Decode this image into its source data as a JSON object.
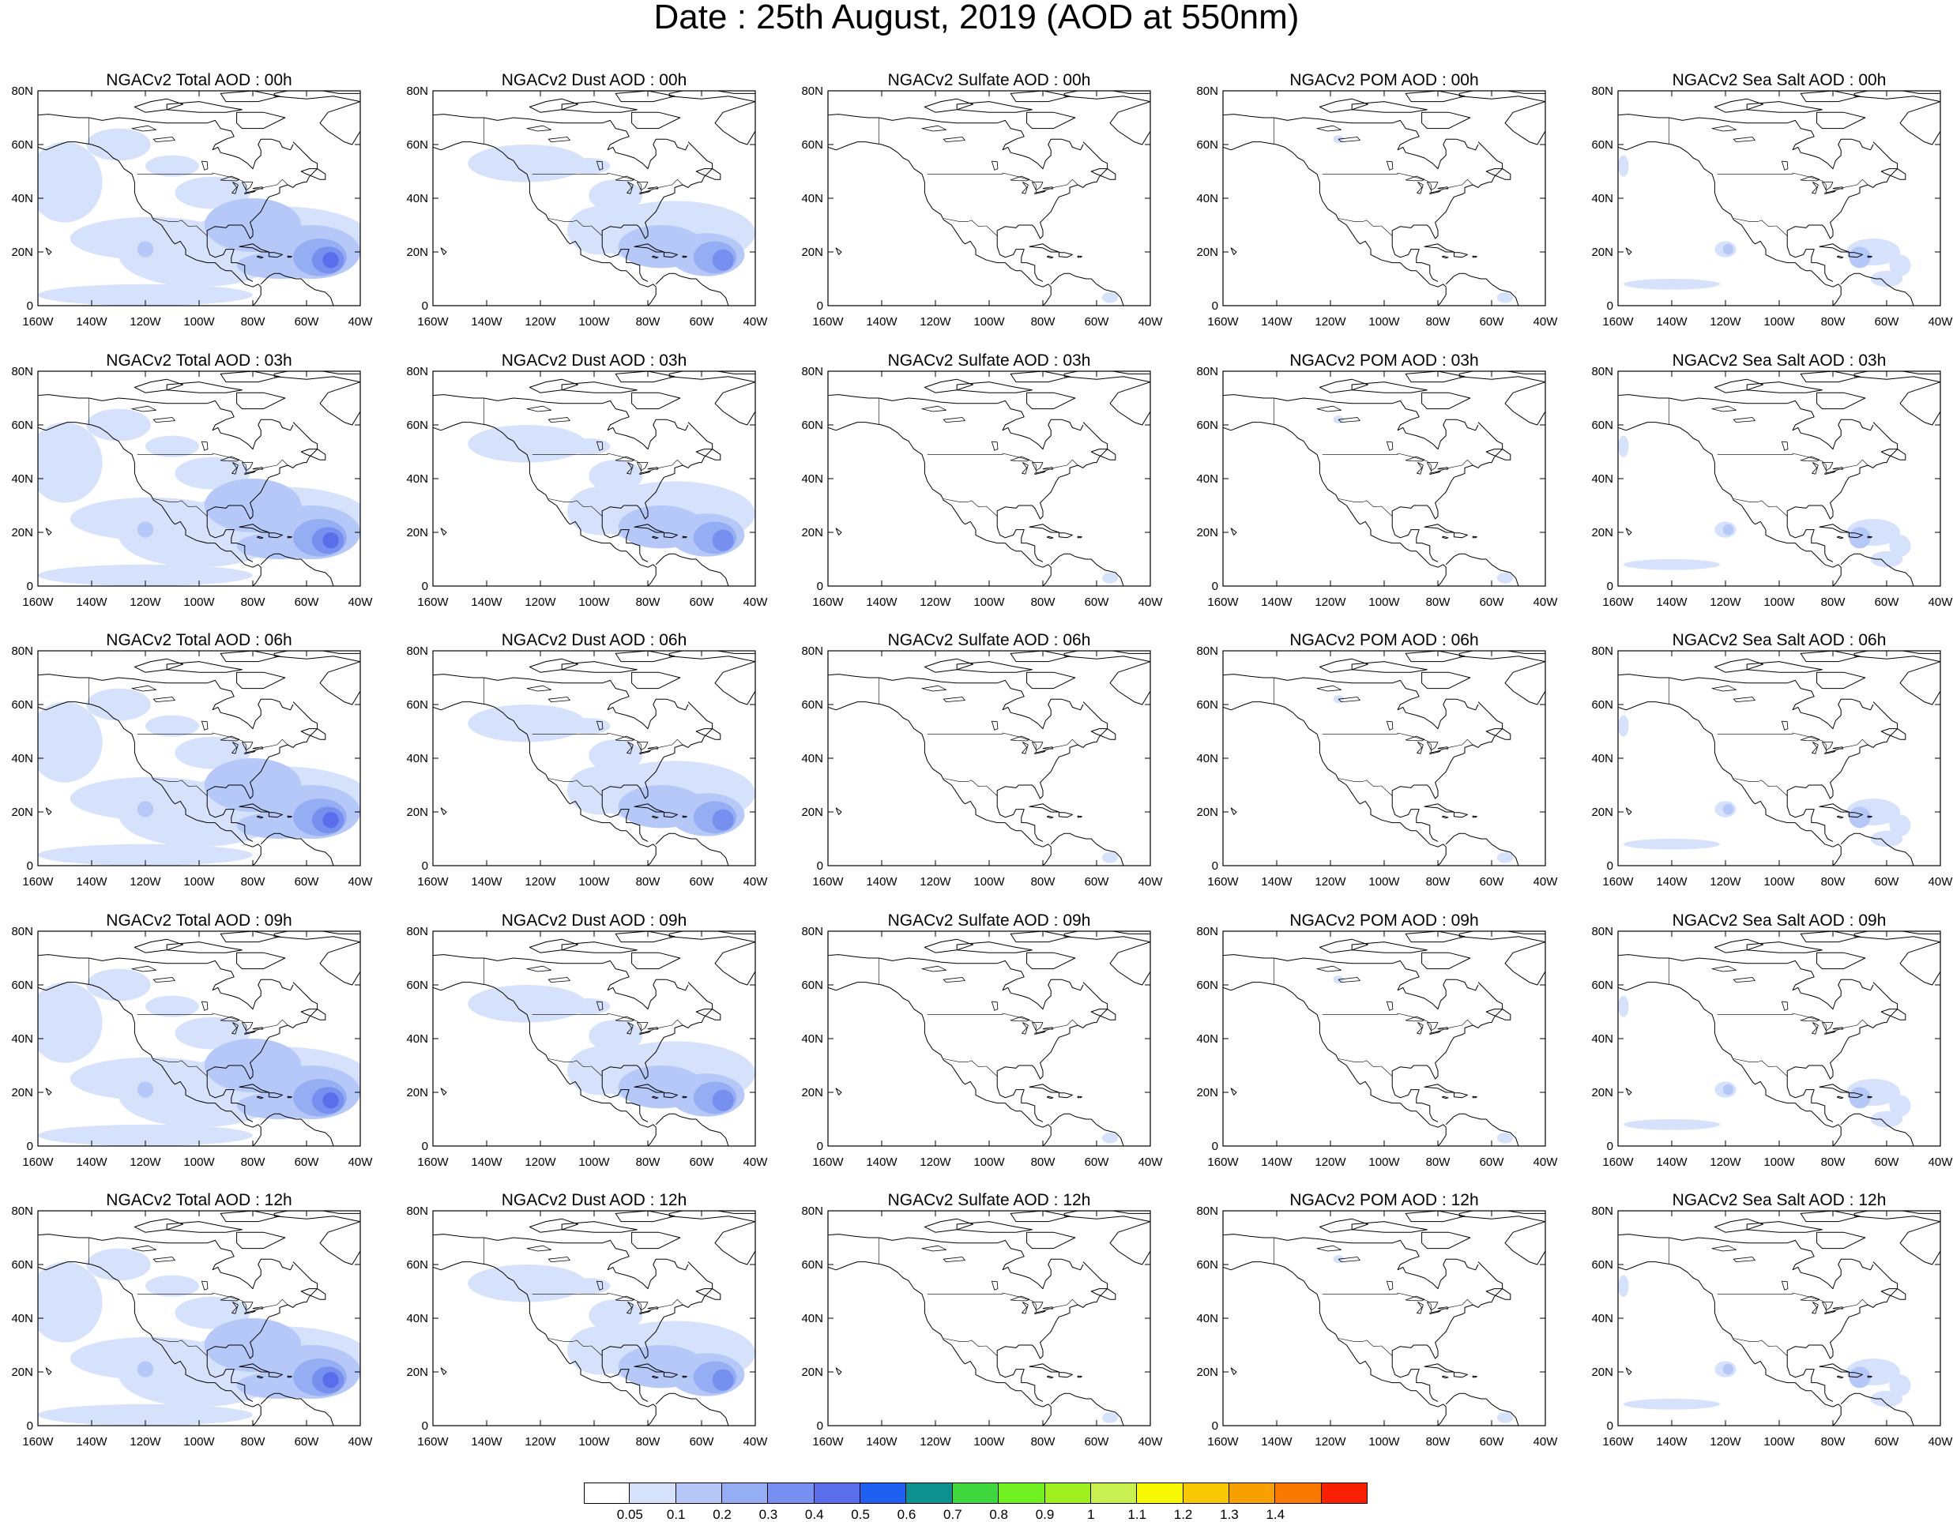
{
  "figure": {
    "title": "Date : 25th August, 2019 (AOD at 550nm)"
  },
  "panels": {
    "rows": [
      [
        "NGACv2 Total AOD : 00h",
        "NGACv2 Dust AOD : 00h",
        "NGACv2 Sulfate AOD : 00h",
        "NGACv2 POM AOD : 00h",
        "NGACv2 Sea Salt AOD : 00h"
      ],
      [
        "NGACv2 Total AOD : 03h",
        "NGACv2 Dust AOD : 03h",
        "NGACv2 Sulfate AOD : 03h",
        "NGACv2 POM AOD : 03h",
        "NGACv2 Sea Salt AOD : 03h"
      ],
      [
        "NGACv2 Total AOD : 06h",
        "NGACv2 Dust AOD : 06h",
        "NGACv2 Sulfate AOD : 06h",
        "NGACv2 POM AOD : 06h",
        "NGACv2 Sea Salt AOD : 06h"
      ],
      [
        "NGACv2 Total AOD : 09h",
        "NGACv2 Dust AOD : 09h",
        "NGACv2 Sulfate AOD : 09h",
        "NGACv2 POM AOD : 09h",
        "NGACv2 Sea Salt  AOD : 09h"
      ],
      [
        "NGACv2 Total AOD  : 12h",
        "NGACv2 Dust AOD : 12h",
        "NGACv2 Sulfate AOD : 12h",
        "NGACv2 POM  AOD : 12h",
        "NGACv2 Sea Salt  AOD : 12h"
      ]
    ],
    "species": [
      "total",
      "dust",
      "sulfate",
      "pom",
      "seasalt"
    ]
  },
  "axes": {
    "lat_ticks": [
      "80N",
      "60N",
      "40N",
      "20N",
      "0"
    ],
    "lon_ticks": [
      "160W",
      "140W",
      "120W",
      "100W",
      "80W",
      "60W",
      "40W"
    ],
    "lon_range": [
      -160,
      -40
    ],
    "lat_range": [
      0,
      80
    ]
  },
  "colorbar": {
    "colors": [
      "#ffffff",
      "#d6e2fb",
      "#b5c8f7",
      "#94adf3",
      "#7790ef",
      "#5a6eeb",
      "#1f60f0",
      "#0c9090",
      "#3ed83e",
      "#70f020",
      "#a0f020",
      "#c8f050",
      "#f8f800",
      "#f8c800",
      "#f8a000",
      "#f87800",
      "#f82000"
    ],
    "labels": [
      "0.05",
      "0.1",
      "0.2",
      "0.3",
      "0.4",
      "0.5",
      "0.6",
      "0.7",
      "0.8",
      "0.9",
      "1",
      "1.1",
      "1.2",
      "1.3",
      "1.4"
    ]
  },
  "map_style": {
    "coast_color": "#000000",
    "aod_palette_used": [
      "#d6e2fb",
      "#b5c8f7",
      "#94adf3",
      "#7790ef",
      "#5a6eeb"
    ]
  }
}
